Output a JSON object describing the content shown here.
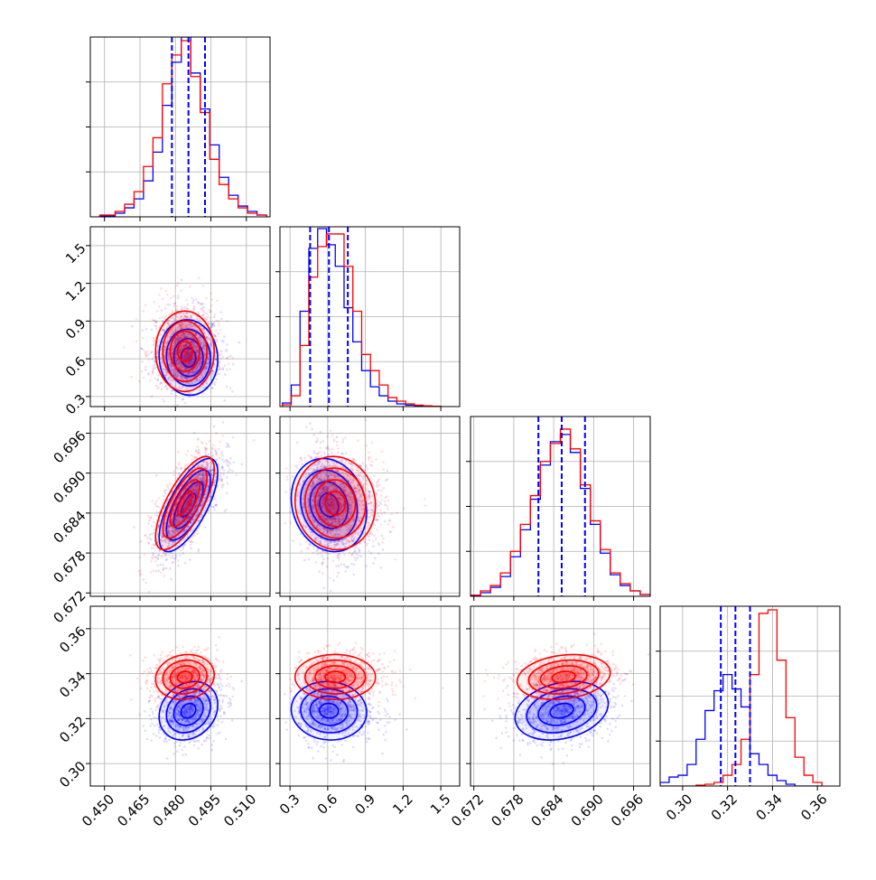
{
  "colors": {
    "series_a": "#0000ff",
    "series_b": "#ff0000",
    "grid": "#b0b0b0"
  },
  "chart_data": {
    "type": "corner",
    "grid": true,
    "parameters": [
      {
        "id": "p0",
        "range": [
          0.444,
          0.52
        ],
        "ticks": [
          0.45,
          0.465,
          0.48,
          0.495,
          0.51
        ],
        "tick_labels": [
          "0.450",
          "0.465",
          "0.480",
          "0.495",
          "0.510"
        ]
      },
      {
        "id": "p1",
        "range": [
          0.22,
          1.65
        ],
        "ticks": [
          0.3,
          0.6,
          0.9,
          1.2,
          1.5
        ],
        "tick_labels": [
          "0.3",
          "0.6",
          "0.9",
          "1.2",
          "1.5"
        ]
      },
      {
        "id": "p2",
        "range": [
          0.6715,
          0.6985
        ],
        "ticks": [
          0.672,
          0.678,
          0.684,
          0.69,
          0.696
        ],
        "tick_labels": [
          "0.672",
          "0.678",
          "0.684",
          "0.690",
          "0.696"
        ]
      },
      {
        "id": "p3",
        "range": [
          0.29,
          0.37
        ],
        "ticks": [
          0.3,
          0.32,
          0.34,
          0.36
        ],
        "tick_labels": [
          "0.30",
          "0.32",
          "0.34",
          "0.36"
        ]
      }
    ],
    "series": [
      {
        "color": "#0000ff",
        "mean": [
          0.4855,
          0.61,
          0.6852,
          0.3235
        ],
        "sd": [
          0.0062,
          0.15,
          0.0035,
          0.0065
        ],
        "quantiles": [
          [
            0.4785,
            0.4855,
            0.4925
          ],
          [
            0.46,
            0.61,
            0.76
          ],
          [
            0.6817,
            0.6852,
            0.6887
          ],
          [
            0.317,
            0.3235,
            0.33
          ]
        ],
        "corr": [
          [
            1,
            -0.05,
            0.7,
            0.2
          ],
          [
            -0.05,
            1,
            -0.15,
            -0.05
          ],
          [
            0.7,
            -0.15,
            1,
            0.25
          ],
          [
            0.2,
            -0.05,
            0.25,
            1
          ]
        ]
      },
      {
        "color": "#ff0000",
        "mean": [
          0.484,
          0.66,
          0.6855,
          0.3385
        ],
        "sd": [
          0.0062,
          0.16,
          0.0035,
          0.005
        ],
        "corr": [
          [
            1,
            0.0,
            0.72,
            0.1
          ],
          [
            0.0,
            1,
            -0.05,
            0.0
          ],
          [
            0.72,
            -0.05,
            1,
            0.2
          ],
          [
            0.1,
            0.0,
            0.2,
            1
          ]
        ]
      }
    ],
    "histograms": {
      "p0": {
        "bin_edges": [
          0.448,
          0.4545,
          0.4585,
          0.4625,
          0.4665,
          0.4705,
          0.4745,
          0.4785,
          0.4825,
          0.4865,
          0.4905,
          0.4945,
          0.4985,
          0.5025,
          0.5065,
          0.5105,
          0.5145,
          0.5185
        ],
        "blue": [
          0.005,
          0.02,
          0.05,
          0.1,
          0.2,
          0.36,
          0.62,
          0.86,
          1.0,
          0.8,
          0.6,
          0.4,
          0.22,
          0.12,
          0.06,
          0.03,
          0.01
        ],
        "red": [
          0.01,
          0.03,
          0.07,
          0.14,
          0.28,
          0.44,
          0.74,
          0.9,
          0.98,
          0.78,
          0.58,
          0.32,
          0.18,
          0.1,
          0.05,
          0.02,
          0.01
        ]
      },
      "p1": {
        "bin_edges": [
          0.24,
          0.31,
          0.38,
          0.45,
          0.52,
          0.59,
          0.66,
          0.73,
          0.8,
          0.87,
          0.94,
          1.01,
          1.08,
          1.15,
          1.22,
          1.29,
          1.36,
          1.43,
          1.5
        ],
        "blue": [
          0.02,
          0.12,
          0.53,
          0.88,
          0.99,
          0.9,
          0.78,
          0.55,
          0.36,
          0.2,
          0.11,
          0.06,
          0.03,
          0.015,
          0.008,
          0.004,
          0.002,
          0.001
        ],
        "red": [
          0.01,
          0.06,
          0.34,
          0.72,
          0.89,
          0.96,
          0.96,
          0.78,
          0.53,
          0.29,
          0.2,
          0.12,
          0.05,
          0.03,
          0.015,
          0.008,
          0.004,
          0.002
        ]
      },
      "p2": {
        "bin_edges": [
          0.6715,
          0.673,
          0.6745,
          0.676,
          0.6775,
          0.679,
          0.6805,
          0.682,
          0.6835,
          0.685,
          0.6865,
          0.688,
          0.6895,
          0.691,
          0.6925,
          0.694,
          0.6955,
          0.697,
          0.6985
        ],
        "blue": [
          0.006,
          0.02,
          0.05,
          0.11,
          0.22,
          0.37,
          0.54,
          0.73,
          0.86,
          0.9,
          0.8,
          0.6,
          0.4,
          0.24,
          0.12,
          0.06,
          0.03,
          0.01
        ],
        "red": [
          0.005,
          0.03,
          0.06,
          0.13,
          0.25,
          0.4,
          0.56,
          0.75,
          0.85,
          0.93,
          0.82,
          0.62,
          0.42,
          0.26,
          0.13,
          0.07,
          0.03,
          0.01
        ]
      },
      "p3": {
        "bin_edges": [
          0.29,
          0.294,
          0.298,
          0.302,
          0.306,
          0.31,
          0.314,
          0.318,
          0.322,
          0.326,
          0.33,
          0.334,
          0.338,
          0.342,
          0.346,
          0.35,
          0.354,
          0.358,
          0.362
        ],
        "blue": [
          0.02,
          0.05,
          0.06,
          0.12,
          0.26,
          0.42,
          0.53,
          0.62,
          0.54,
          0.44,
          0.18,
          0.12,
          0.06,
          0.03,
          0.01,
          0.0,
          0.0,
          0.0
        ],
        "red": [
          0.0,
          0.0,
          0.0,
          0.0,
          0.005,
          0.01,
          0.02,
          0.06,
          0.12,
          0.26,
          0.62,
          0.96,
          0.98,
          0.7,
          0.38,
          0.16,
          0.06,
          0.02
        ]
      }
    }
  }
}
